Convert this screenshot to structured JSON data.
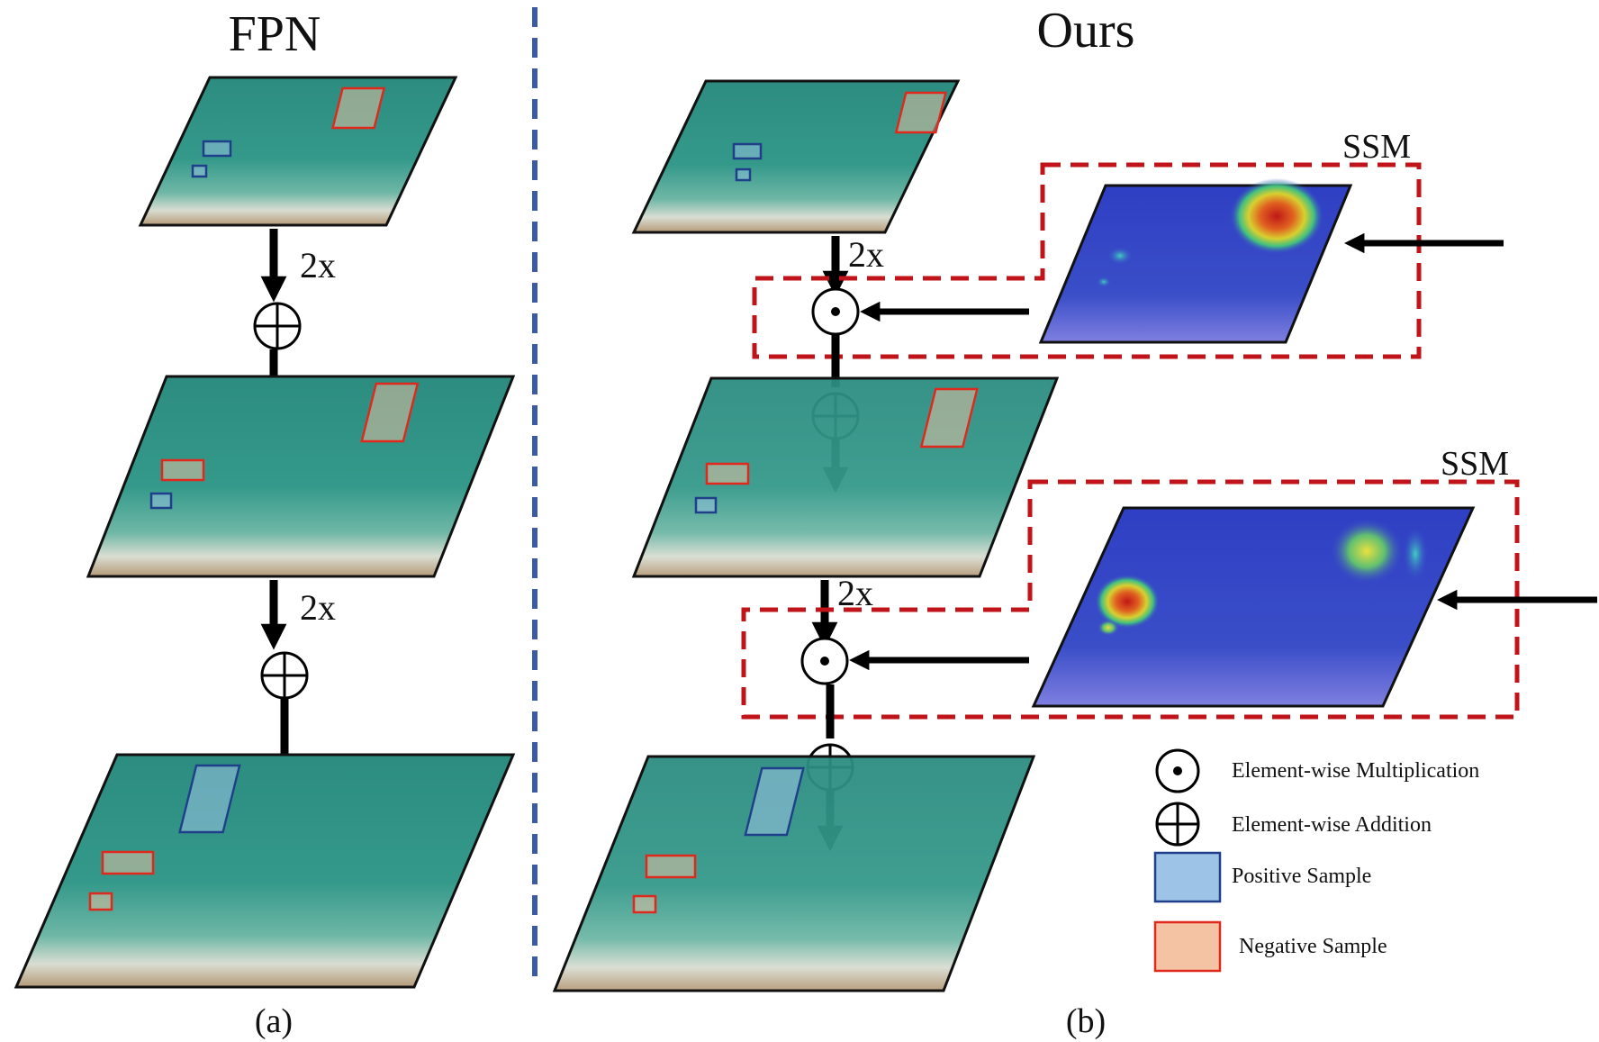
{
  "panels": {
    "fpn": {
      "title": "FPN",
      "caption": "(a)",
      "upsample_labels": [
        "2x",
        "2x"
      ]
    },
    "ours": {
      "title": "Ours",
      "caption": "(b)",
      "upsample_labels": [
        "2x",
        "2x"
      ],
      "module_labels": [
        "SSM",
        "SSM"
      ]
    }
  },
  "legend": {
    "multiplication": "Element-wise Multiplication",
    "addition": "Element-wise Addition",
    "positive": "Positive Sample",
    "negative": "Negative Sample"
  },
  "colors": {
    "divider": "#3a5aa8",
    "ssm_border": "#c0141a",
    "positive_fill": "#9dc3e6",
    "positive_border": "#1f3f8a",
    "negative_fill": "#f4c3a4",
    "negative_border": "#e0281c",
    "sea": "#2f8f82",
    "heatmap": "#3046c8"
  }
}
